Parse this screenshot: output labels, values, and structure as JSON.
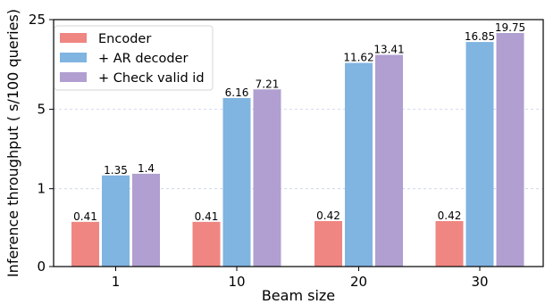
{
  "chart_data": {
    "type": "bar",
    "title": "",
    "xlabel": "Beam size",
    "ylabel": "Inference throughput ( s/100 queries)",
    "categories": [
      "1",
      "10",
      "20",
      "30"
    ],
    "y_scale": "symlog",
    "yticks": [
      0,
      1,
      5,
      25
    ],
    "ylim": [
      0,
      25
    ],
    "grid": "horizontal dashed",
    "legend_position": "top-left",
    "series": [
      {
        "name": "Encoder",
        "color": "#ef8682",
        "values": [
          0.41,
          0.41,
          0.42,
          0.42
        ],
        "labels": [
          "0.41",
          "0.41",
          "0.42",
          "0.42"
        ]
      },
      {
        "name": "+ AR decoder",
        "color": "#80b4e1",
        "values": [
          1.35,
          6.16,
          11.62,
          16.85
        ],
        "labels": [
          "1.35",
          "6.16",
          "11.62",
          "16.85"
        ]
      },
      {
        "name": "+ Check valid id",
        "color": "#b09fd0",
        "values": [
          1.4,
          7.21,
          13.41,
          19.75
        ],
        "labels": [
          "1.4",
          "7.21",
          "13.41",
          "19.75"
        ]
      }
    ]
  }
}
